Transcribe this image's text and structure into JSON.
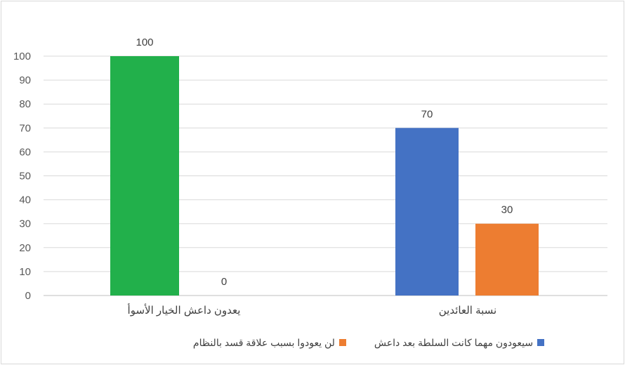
{
  "chart_data": {
    "type": "bar",
    "categories": [
      "يعدون داعش الخيار الأسوأ",
      "نسبة العائدين"
    ],
    "ylim": [
      0,
      100
    ],
    "yticks": [
      0,
      10,
      20,
      30,
      40,
      50,
      60,
      70,
      80,
      90,
      100
    ],
    "grid": true,
    "legend_position": "bottom",
    "bars": [
      {
        "category": 0,
        "value": 100,
        "label": "100",
        "color": "#22b04b"
      },
      {
        "category": 0,
        "value": 0,
        "label": "0",
        "color": "#22b04b"
      },
      {
        "category": 1,
        "value": 70,
        "label": "70",
        "color": "#4472c4",
        "series": 0
      },
      {
        "category": 1,
        "value": 30,
        "label": "30",
        "color": "#ed7d31",
        "series": 1
      }
    ],
    "series": [
      {
        "name": "سيعودون مهما كانت السلطة بعد داعش",
        "color": "#4472c4"
      },
      {
        "name": "لن يعودوا بسبب علاقة قسد بالنظام",
        "color": "#ed7d31"
      }
    ],
    "title": "",
    "xlabel": "",
    "ylabel": ""
  }
}
